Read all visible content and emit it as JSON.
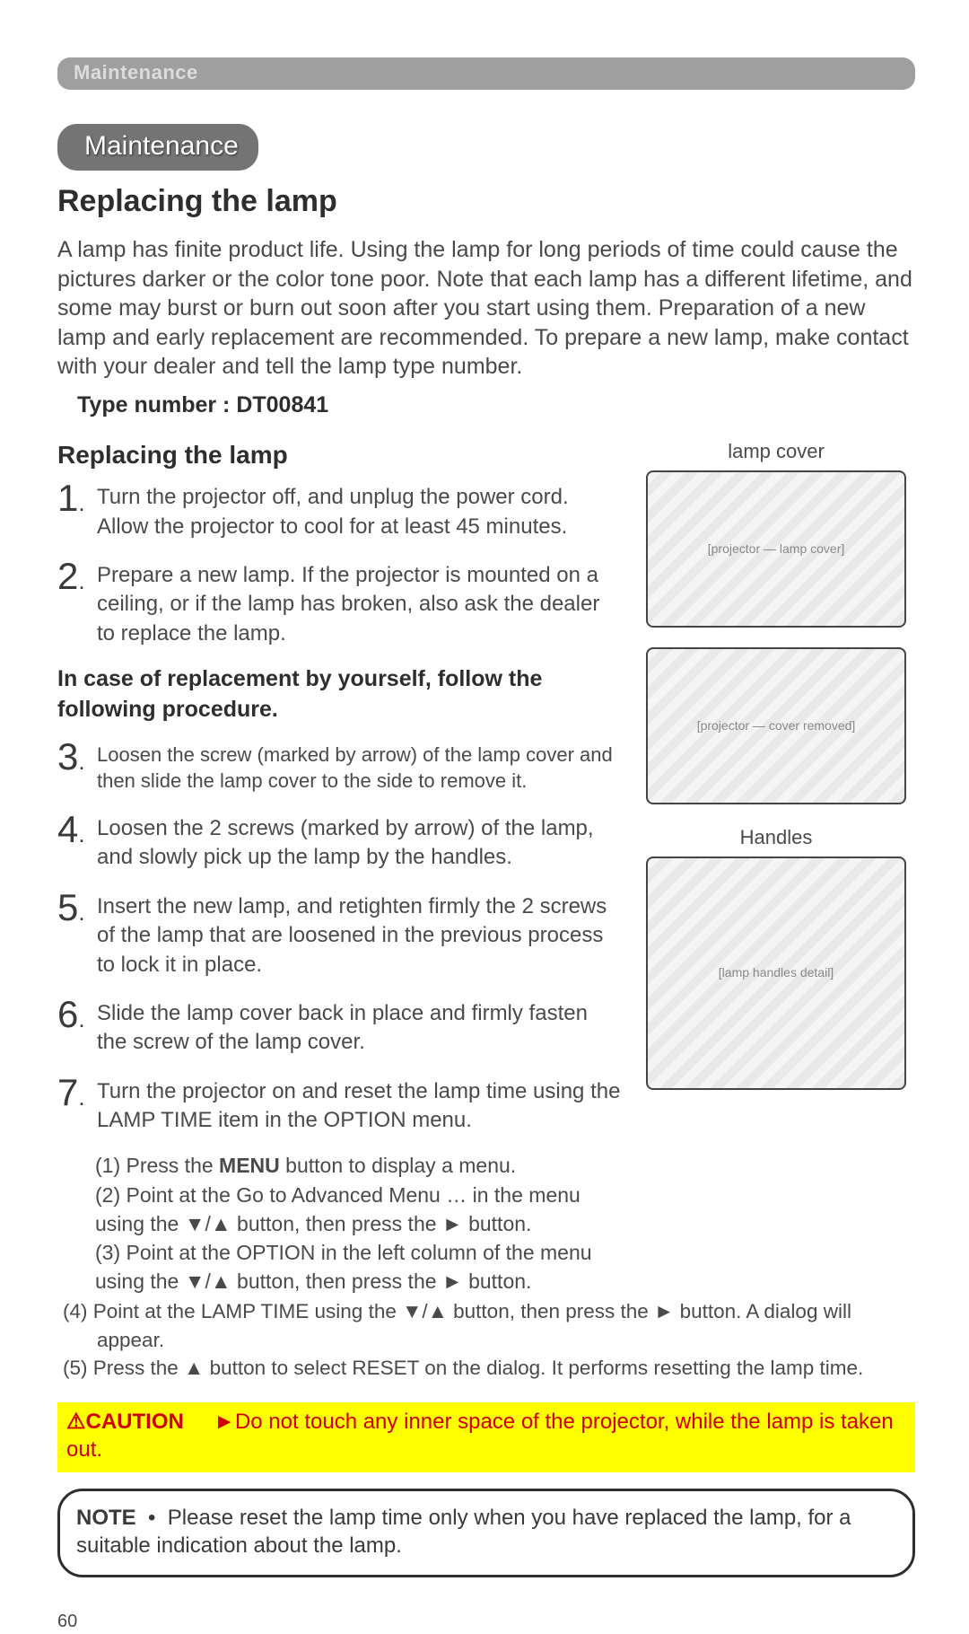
{
  "header_bar": "Maintenance",
  "pill": "Maintenance",
  "h1": "Replacing the lamp",
  "intro": "A lamp has finite product life. Using the lamp for long periods of time could cause the pictures darker or the color tone poor. Note that each lamp has a different lifetime, and some may burst or burn out soon after you start using them. Preparation of a new lamp and early replacement are recommended. To prepare a new lamp, make contact with your dealer and tell the lamp type number.",
  "type_number": "Type number : DT00841",
  "h2": "Replacing the lamp",
  "steps12": [
    {
      "n": "1",
      "t": "Turn the projector off, and unplug the power cord. Allow the projector to cool for at least 45 minutes."
    },
    {
      "n": "2",
      "t": "Prepare a new lamp. If the projector is mounted on a ceiling, or if the lamp has broken, also ask the dealer to replace the lamp."
    }
  ],
  "subhead": "In case of replacement by yourself, follow the following procedure.",
  "steps37": [
    {
      "n": "3",
      "t": "Loosen the screw (marked by arrow) of the lamp cover and then slide the lamp cover to the side to remove it.",
      "small": true
    },
    {
      "n": "4",
      "t": "Loosen the 2 screws (marked by arrow) of the lamp, and slowly pick up the lamp by the handles."
    },
    {
      "n": "5",
      "t": "Insert the new lamp, and retighten firmly the 2 screws of the lamp that are loosened in the previous process to lock it in place."
    },
    {
      "n": "6",
      "t": "Slide the lamp cover back in place and firmly fasten the screw of the lamp cover."
    },
    {
      "n": "7",
      "t": "Turn the projector on and reset the lamp time using the LAMP TIME item in the OPTION menu."
    }
  ],
  "sub7": [
    "(1) Press the MENU button to display a menu.",
    "(2) Point at the Go to Advanced Menu … in the menu using the ▼/▲ button, then press the ► button.",
    "(3) Point at the OPTION in the left column of the menu using the ▼/▲ button, then press the ► button."
  ],
  "sub7_full": [
    "(4) Point at the LAMP TIME using the ▼/▲ button, then press the ► button. A dialog will appear.",
    "(5) Press the ▲ button to select RESET on the dialog. It performs resetting the lamp time."
  ],
  "right": {
    "cap1": "lamp cover",
    "cap2": "Handles",
    "ill1": "[projector — lamp cover]",
    "ill2": "[projector — cover removed]",
    "ill3": "[lamp handles detail]"
  },
  "caution": {
    "warn": "⚠",
    "label": "CAUTION",
    "arrow": "►",
    "text": "Do not touch any inner space of the projector, while the lamp is taken out."
  },
  "note": {
    "label": "NOTE",
    "bullet": "•",
    "text": "Please reset the lamp time only when you have replaced the lamp, for a suitable indication about the lamp."
  },
  "page": "60"
}
